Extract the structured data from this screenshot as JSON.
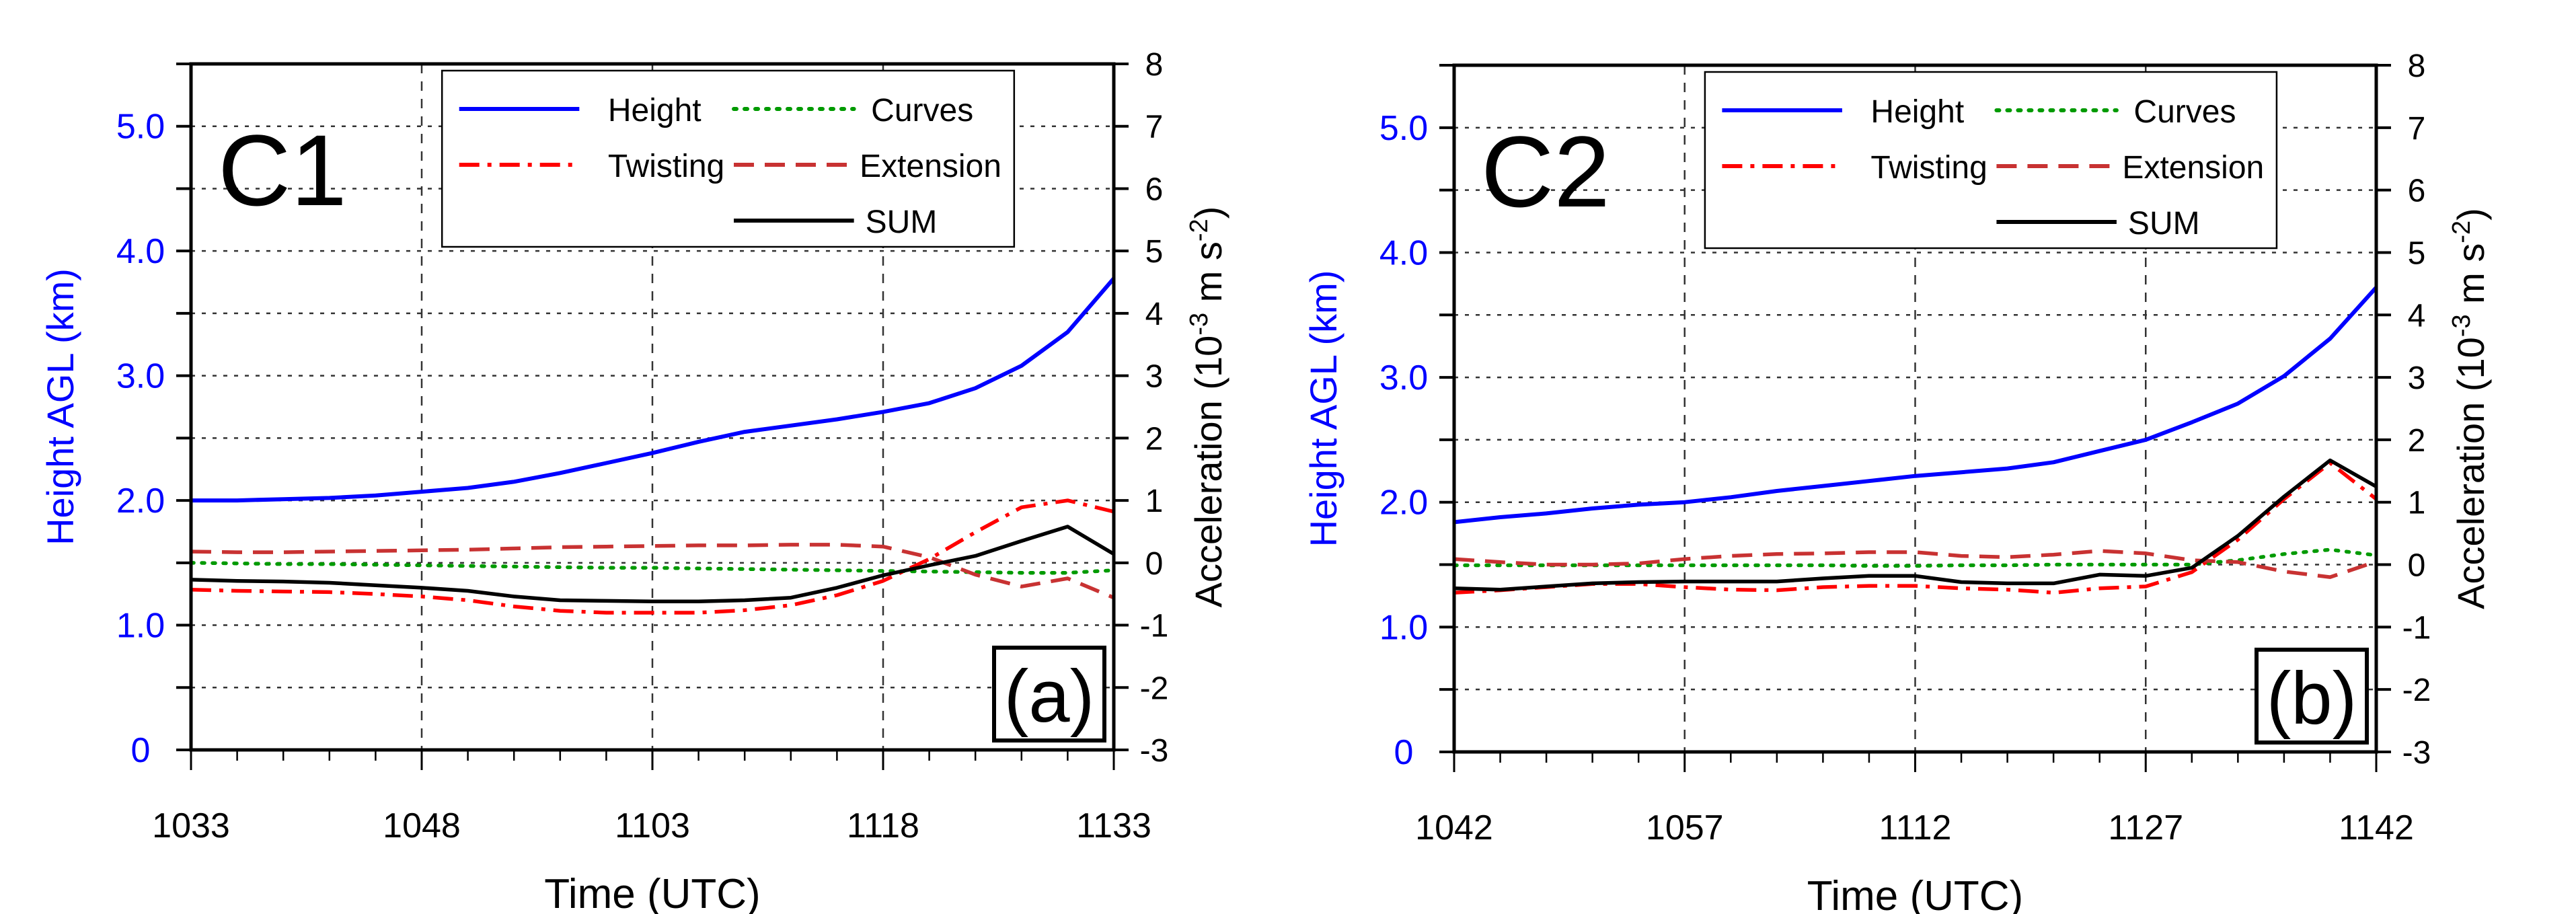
{
  "chart_data": [
    {
      "type": "line",
      "panel_title": "C1",
      "panel_label": "(a)",
      "xlabel": "Time (UTC)",
      "ylabel_left": "Height AGL (km)",
      "ylabel_right_base": "Acceleration (10",
      "ylabel_right_exp1": "-3",
      "ylabel_right_mid": " m s",
      "ylabel_right_exp2": "-2",
      "ylabel_right_end": ")",
      "x_tick_labels": [
        "1033",
        "1048",
        "1103",
        "1118",
        "1133"
      ],
      "x_minutes_step": 3,
      "y_left_ticks": [
        {
          "v": 0,
          "label": "0"
        },
        {
          "v": 1,
          "label": "1.0"
        },
        {
          "v": 2,
          "label": "2.0"
        },
        {
          "v": 3,
          "label": "3.0"
        },
        {
          "v": 4,
          "label": "4.0"
        },
        {
          "v": 5,
          "label": "5.0"
        }
      ],
      "y_left_range": [
        0,
        5.5
      ],
      "y_right_ticks": [
        "-3",
        "-2",
        "-1",
        "0",
        "1",
        "2",
        "3",
        "4",
        "5",
        "6",
        "7",
        "8"
      ],
      "y_right_range": [
        -3,
        8
      ],
      "grid": true,
      "legend_position": "top-right",
      "series": [
        {
          "name": "Height",
          "axis": "left",
          "color": "#0000ff",
          "style": "solid",
          "values": [
            2.0,
            2.0,
            2.01,
            2.02,
            2.04,
            2.07,
            2.1,
            2.15,
            2.22,
            2.3,
            2.38,
            2.47,
            2.55,
            2.6,
            2.65,
            2.71,
            2.78,
            2.9,
            3.08,
            3.35,
            3.78
          ]
        },
        {
          "name": "Curves",
          "axis": "right",
          "color": "#009a00",
          "style": "dotted",
          "values": [
            0.0,
            -0.01,
            -0.02,
            -0.02,
            -0.03,
            -0.04,
            -0.05,
            -0.06,
            -0.07,
            -0.08,
            -0.08,
            -0.09,
            -0.1,
            -0.11,
            -0.12,
            -0.13,
            -0.14,
            -0.15,
            -0.16,
            -0.16,
            -0.12
          ]
        },
        {
          "name": "Twisting",
          "axis": "right",
          "color": "#ff0000",
          "style": "dashdot",
          "values": [
            -0.43,
            -0.45,
            -0.46,
            -0.47,
            -0.5,
            -0.54,
            -0.6,
            -0.7,
            -0.77,
            -0.8,
            -0.8,
            -0.8,
            -0.76,
            -0.68,
            -0.52,
            -0.29,
            0.06,
            0.49,
            0.89,
            1.0,
            0.82
          ]
        },
        {
          "name": "Extension",
          "axis": "right",
          "color": "#c83232",
          "style": "dashed",
          "values": [
            0.18,
            0.17,
            0.17,
            0.18,
            0.19,
            0.2,
            0.21,
            0.23,
            0.25,
            0.26,
            0.27,
            0.28,
            0.28,
            0.29,
            0.29,
            0.26,
            0.09,
            -0.19,
            -0.38,
            -0.25,
            -0.56
          ]
        },
        {
          "name": "SUM",
          "axis": "right",
          "color": "#000000",
          "style": "solid",
          "values": [
            -0.27,
            -0.29,
            -0.3,
            -0.32,
            -0.36,
            -0.4,
            -0.45,
            -0.54,
            -0.6,
            -0.61,
            -0.62,
            -0.62,
            -0.6,
            -0.56,
            -0.4,
            -0.2,
            -0.04,
            0.11,
            0.35,
            0.58,
            0.14
          ]
        }
      ]
    },
    {
      "type": "line",
      "panel_title": "C2",
      "panel_label": "(b)",
      "xlabel": "Time (UTC)",
      "ylabel_left": "Height AGL (km)",
      "ylabel_right_base": "Acceleration (10",
      "ylabel_right_exp1": "-3",
      "ylabel_right_mid": " m s",
      "ylabel_right_exp2": "-2",
      "ylabel_right_end": ")",
      "x_tick_labels": [
        "1042",
        "1057",
        "1112",
        "1127",
        "1142"
      ],
      "x_minutes_step": 3,
      "y_left_ticks": [
        {
          "v": 0,
          "label": "0"
        },
        {
          "v": 1,
          "label": "1.0"
        },
        {
          "v": 2,
          "label": "2.0"
        },
        {
          "v": 3,
          "label": "3.0"
        },
        {
          "v": 4,
          "label": "4.0"
        },
        {
          "v": 5,
          "label": "5.0"
        }
      ],
      "y_left_range": [
        0,
        5.5
      ],
      "y_right_ticks": [
        "-3",
        "-2",
        "-1",
        "0",
        "1",
        "2",
        "3",
        "4",
        "5",
        "6",
        "7",
        "8"
      ],
      "y_right_range": [
        -3,
        8
      ],
      "grid": true,
      "legend_position": "top-right",
      "series": [
        {
          "name": "Height",
          "axis": "left",
          "color": "#0000ff",
          "style": "solid",
          "values": [
            1.84,
            1.88,
            1.91,
            1.95,
            1.98,
            2.0,
            2.04,
            2.09,
            2.13,
            2.17,
            2.21,
            2.24,
            2.27,
            2.32,
            2.41,
            2.5,
            2.64,
            2.79,
            3.01,
            3.31,
            3.72
          ]
        },
        {
          "name": "Curves",
          "axis": "right",
          "color": "#009a00",
          "style": "dotted",
          "values": [
            -0.01,
            -0.01,
            -0.01,
            -0.01,
            -0.01,
            -0.01,
            -0.01,
            -0.01,
            -0.01,
            -0.02,
            -0.02,
            -0.01,
            -0.01,
            0.0,
            0.0,
            0.0,
            0.0,
            0.07,
            0.17,
            0.24,
            0.15
          ]
        },
        {
          "name": "Twisting",
          "axis": "right",
          "color": "#ff0000",
          "style": "dashdot",
          "values": [
            -0.45,
            -0.41,
            -0.36,
            -0.31,
            -0.31,
            -0.36,
            -0.4,
            -0.41,
            -0.36,
            -0.34,
            -0.34,
            -0.38,
            -0.4,
            -0.45,
            -0.38,
            -0.35,
            -0.12,
            0.4,
            1.05,
            1.63,
            1.05
          ]
        },
        {
          "name": "Extension",
          "axis": "right",
          "color": "#c83232",
          "style": "dashed",
          "values": [
            0.09,
            0.04,
            0.0,
            0.0,
            0.02,
            0.09,
            0.14,
            0.17,
            0.18,
            0.2,
            0.2,
            0.14,
            0.12,
            0.16,
            0.22,
            0.18,
            0.07,
            0.04,
            -0.11,
            -0.2,
            0.05
          ]
        },
        {
          "name": "SUM",
          "axis": "right",
          "color": "#000000",
          "style": "solid",
          "values": [
            -0.38,
            -0.4,
            -0.35,
            -0.3,
            -0.28,
            -0.27,
            -0.27,
            -0.27,
            -0.22,
            -0.18,
            -0.18,
            -0.28,
            -0.3,
            -0.3,
            -0.16,
            -0.18,
            -0.05,
            0.46,
            1.09,
            1.67,
            1.25
          ]
        }
      ]
    }
  ]
}
